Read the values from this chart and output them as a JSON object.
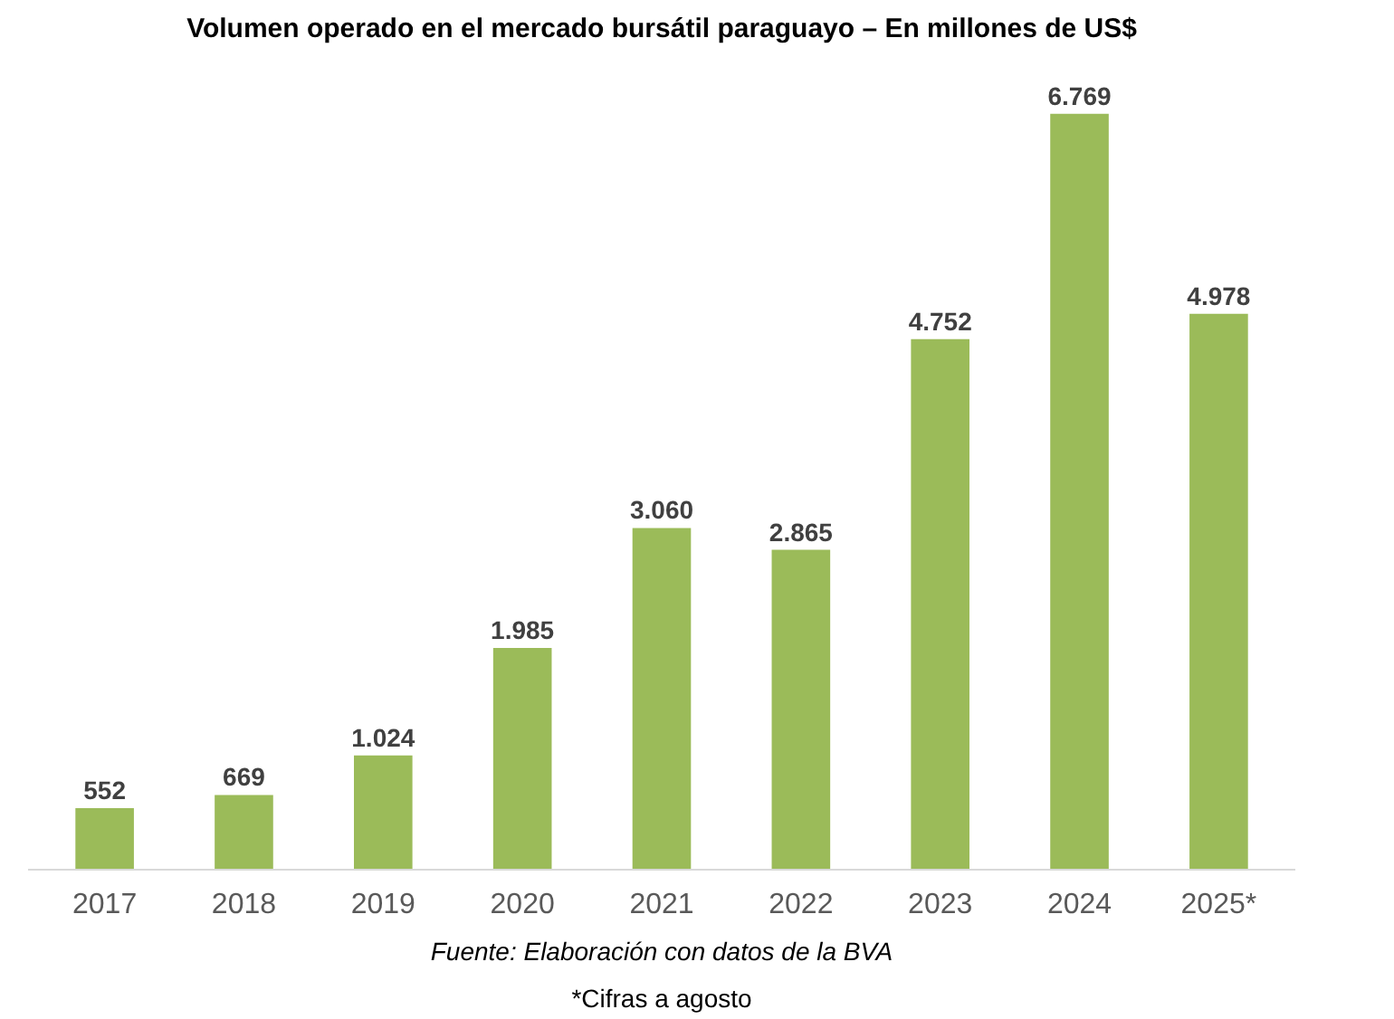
{
  "chart_data": {
    "type": "bar",
    "title": "Volumen operado en el mercado bursátil paraguayo – En millones de US$",
    "categories": [
      "2017",
      "2018",
      "2019",
      "2020",
      "2021",
      "2022",
      "2023",
      "2024",
      "2025*"
    ],
    "values": [
      552,
      669,
      1024,
      1985,
      3060,
      2865,
      4752,
      6769,
      4978
    ],
    "value_labels": [
      "552",
      "669",
      "1.024",
      "1.985",
      "3.060",
      "2.865",
      "4.752",
      "6.769",
      "4.978"
    ],
    "color": "#9bbb59",
    "grid": false,
    "annotations": [
      "Fuente: Elaboración con datos de la BVA",
      "*Cifras a agosto"
    ]
  }
}
